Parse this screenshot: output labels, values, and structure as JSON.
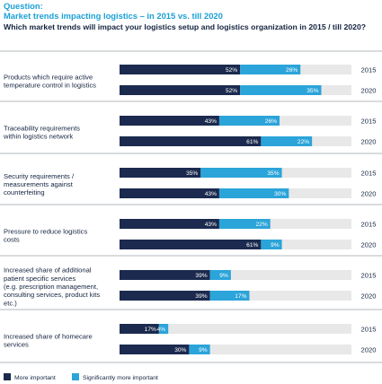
{
  "header": {
    "label": "Question:",
    "title": "Market trends impacting logistics – in 2015 vs. till 2020",
    "question": "Which market trends will impact your logistics setup and logistics organization in 2015 / till 2020?"
  },
  "chart_data": {
    "type": "bar",
    "stacked": true,
    "orientation": "horizontal",
    "xlim": [
      0,
      100
    ],
    "colors": {
      "more_important": "#1b2a4e",
      "significantly_more_important": "#2ba4d9",
      "remainder": "#e8e8e8"
    },
    "legend": {
      "placement": "bottom-left",
      "entries": [
        "More important",
        "Significantly more important"
      ]
    },
    "groups": [
      {
        "label": [
          "Products which require active",
          "temperature control in logistics"
        ],
        "rows": [
          {
            "year": "2015",
            "more_important": 52,
            "significantly_more_important": 26,
            "labels": [
              "52%",
              "26%"
            ]
          },
          {
            "year": "2020",
            "more_important": 52,
            "significantly_more_important": 35,
            "labels": [
              "52%",
              "35%"
            ]
          }
        ]
      },
      {
        "label": [
          "Traceability requirements",
          "within logistics network"
        ],
        "rows": [
          {
            "year": "2015",
            "more_important": 43,
            "significantly_more_important": 26,
            "labels": [
              "43%",
              "26%"
            ]
          },
          {
            "year": "2020",
            "more_important": 61,
            "significantly_more_important": 22,
            "labels": [
              "61%",
              "22%"
            ]
          }
        ]
      },
      {
        "label": [
          "Security requirements /",
          "measurements against",
          "counterfeiting"
        ],
        "rows": [
          {
            "year": "2015",
            "more_important": 35,
            "significantly_more_important": 35,
            "labels": [
              "35%",
              "35%"
            ]
          },
          {
            "year": "2020",
            "more_important": 43,
            "significantly_more_important": 30,
            "labels": [
              "43%",
              "30%"
            ]
          }
        ]
      },
      {
        "label": [
          "Pressure to reduce logistics",
          "costs"
        ],
        "rows": [
          {
            "year": "2015",
            "more_important": 43,
            "significantly_more_important": 22,
            "labels": [
              "43%",
              "22%"
            ]
          },
          {
            "year": "2020",
            "more_important": 61,
            "significantly_more_important": 9,
            "labels": [
              "61%",
              "9%"
            ]
          }
        ]
      },
      {
        "label": [
          "Increased share of additional",
          "patient specific services",
          "(e.g. prescription management,",
          "consulting services, product kits",
          "etc.)"
        ],
        "rows": [
          {
            "year": "2015",
            "more_important": 39,
            "significantly_more_important": 9,
            "labels": [
              "39%",
              "9%"
            ]
          },
          {
            "year": "2020",
            "more_important": 39,
            "significantly_more_important": 17,
            "labels": [
              "39%",
              "17%"
            ]
          }
        ]
      },
      {
        "label": [
          "Increased share of homecare",
          "services"
        ],
        "rows": [
          {
            "year": "2015",
            "more_important": 17,
            "significantly_more_important": 4,
            "labels": [
              "17%",
              "4%"
            ]
          },
          {
            "year": "2020",
            "more_important": 30,
            "significantly_more_important": 9,
            "labels": [
              "30%",
              "9%"
            ]
          }
        ]
      }
    ]
  }
}
